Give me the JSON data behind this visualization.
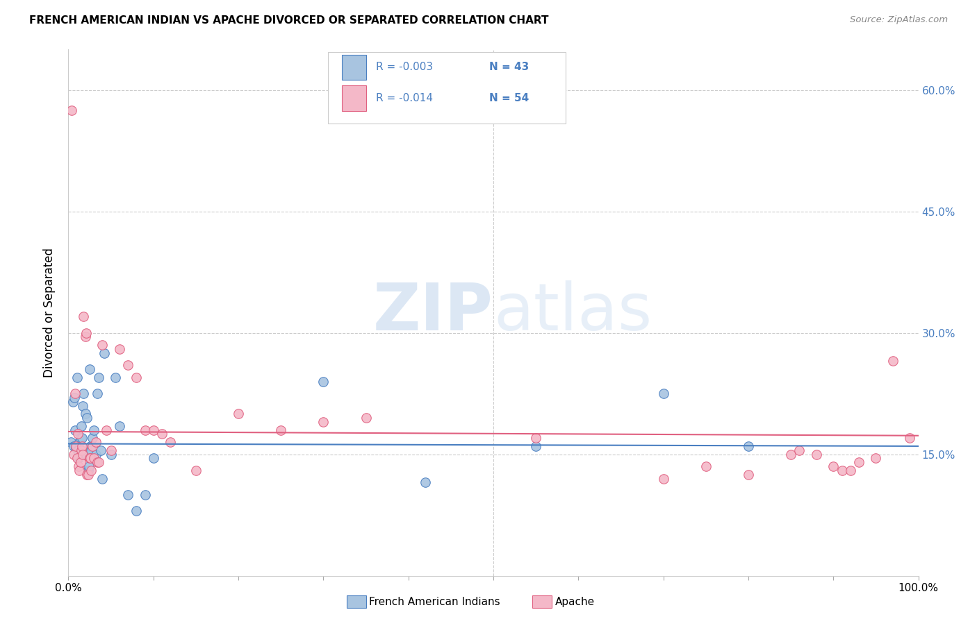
{
  "title": "FRENCH AMERICAN INDIAN VS APACHE DIVORCED OR SEPARATED CORRELATION CHART",
  "source": "Source: ZipAtlas.com",
  "ylabel": "Divorced or Separated",
  "xlim": [
    0,
    100
  ],
  "ylim": [
    0,
    65
  ],
  "blue_color": "#a8c4e0",
  "pink_color": "#f4b8c8",
  "blue_line_color": "#4a7fc1",
  "pink_line_color": "#e06080",
  "legend_r1": "R = -0.003",
  "legend_n1": "N = 43",
  "legend_r2": "R = -0.014",
  "legend_n2": "N = 54",
  "watermark_zip": "ZIP",
  "watermark_atlas": "atlas",
  "blue_scatter": [
    [
      0.3,
      16.5
    ],
    [
      0.5,
      21.5
    ],
    [
      0.6,
      16.0
    ],
    [
      0.7,
      22.0
    ],
    [
      0.8,
      18.0
    ],
    [
      0.9,
      15.8
    ],
    [
      1.0,
      24.5
    ],
    [
      1.1,
      15.5
    ],
    [
      1.2,
      14.5
    ],
    [
      1.3,
      16.5
    ],
    [
      1.4,
      17.0
    ],
    [
      1.5,
      18.5
    ],
    [
      1.6,
      17.0
    ],
    [
      1.7,
      21.0
    ],
    [
      1.8,
      22.5
    ],
    [
      2.0,
      20.0
    ],
    [
      2.1,
      15.0
    ],
    [
      2.2,
      19.5
    ],
    [
      2.3,
      13.0
    ],
    [
      2.4,
      13.5
    ],
    [
      2.5,
      25.5
    ],
    [
      2.6,
      16.0
    ],
    [
      2.7,
      15.5
    ],
    [
      2.8,
      17.0
    ],
    [
      3.0,
      18.0
    ],
    [
      3.2,
      15.0
    ],
    [
      3.4,
      22.5
    ],
    [
      3.6,
      24.5
    ],
    [
      3.8,
      15.5
    ],
    [
      4.0,
      12.0
    ],
    [
      4.2,
      27.5
    ],
    [
      5.0,
      15.0
    ],
    [
      5.5,
      24.5
    ],
    [
      6.0,
      18.5
    ],
    [
      7.0,
      10.0
    ],
    [
      8.0,
      8.0
    ],
    [
      9.0,
      10.0
    ],
    [
      10.0,
      14.5
    ],
    [
      30.0,
      24.0
    ],
    [
      42.0,
      11.5
    ],
    [
      55.0,
      16.0
    ],
    [
      70.0,
      22.5
    ],
    [
      80.0,
      16.0
    ]
  ],
  "pink_scatter": [
    [
      0.4,
      57.5
    ],
    [
      0.6,
      15.0
    ],
    [
      0.8,
      22.5
    ],
    [
      0.9,
      16.0
    ],
    [
      1.0,
      14.5
    ],
    [
      1.1,
      17.5
    ],
    [
      1.2,
      13.5
    ],
    [
      1.3,
      13.0
    ],
    [
      1.4,
      14.0
    ],
    [
      1.5,
      15.5
    ],
    [
      1.6,
      16.0
    ],
    [
      1.7,
      15.0
    ],
    [
      1.8,
      32.0
    ],
    [
      2.0,
      29.5
    ],
    [
      2.1,
      30.0
    ],
    [
      2.2,
      12.5
    ],
    [
      2.3,
      12.5
    ],
    [
      2.5,
      14.5
    ],
    [
      2.6,
      14.5
    ],
    [
      2.7,
      13.0
    ],
    [
      2.8,
      16.0
    ],
    [
      3.0,
      14.5
    ],
    [
      3.2,
      16.5
    ],
    [
      3.4,
      14.0
    ],
    [
      3.6,
      14.0
    ],
    [
      4.0,
      28.5
    ],
    [
      4.5,
      18.0
    ],
    [
      5.0,
      15.5
    ],
    [
      6.0,
      28.0
    ],
    [
      7.0,
      26.0
    ],
    [
      8.0,
      24.5
    ],
    [
      9.0,
      18.0
    ],
    [
      10.0,
      18.0
    ],
    [
      11.0,
      17.5
    ],
    [
      12.0,
      16.5
    ],
    [
      15.0,
      13.0
    ],
    [
      20.0,
      20.0
    ],
    [
      25.0,
      18.0
    ],
    [
      30.0,
      19.0
    ],
    [
      35.0,
      19.5
    ],
    [
      55.0,
      17.0
    ],
    [
      70.0,
      12.0
    ],
    [
      75.0,
      13.5
    ],
    [
      80.0,
      12.5
    ],
    [
      85.0,
      15.0
    ],
    [
      86.0,
      15.5
    ],
    [
      88.0,
      15.0
    ],
    [
      90.0,
      13.5
    ],
    [
      91.0,
      13.0
    ],
    [
      92.0,
      13.0
    ],
    [
      93.0,
      14.0
    ],
    [
      95.0,
      14.5
    ],
    [
      97.0,
      26.5
    ],
    [
      99.0,
      17.0
    ]
  ],
  "blue_trend_y_start": 16.3,
  "blue_trend_y_end": 16.0,
  "pink_trend_y_start": 17.8,
  "pink_trend_y_end": 17.3,
  "marker_size": 95
}
